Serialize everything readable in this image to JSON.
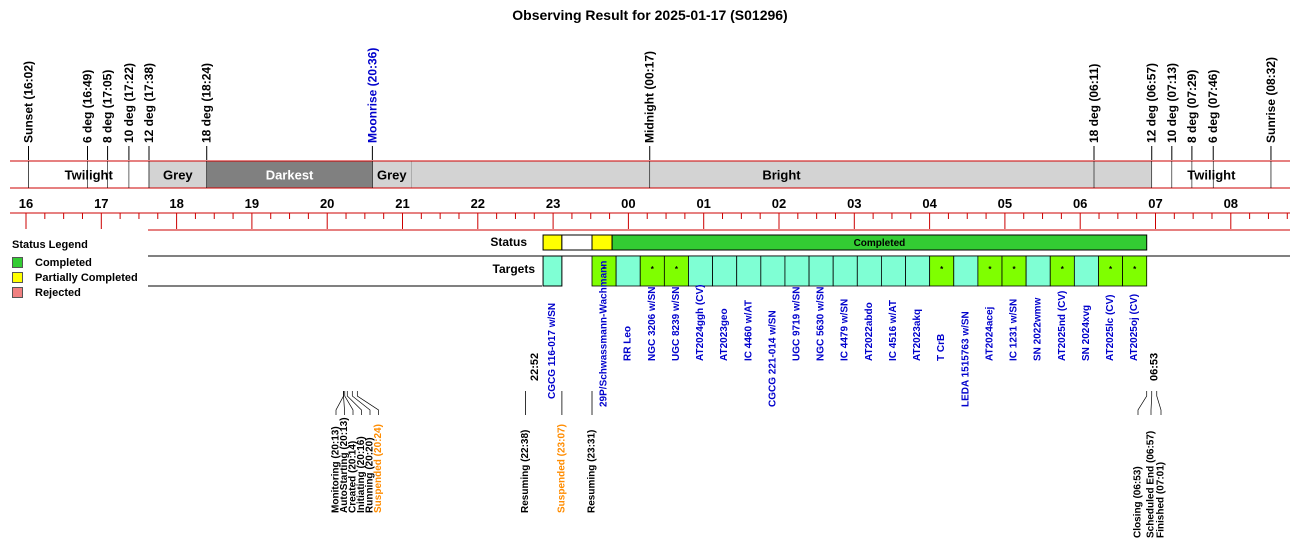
{
  "chart_data": {
    "type": "timeline",
    "title": "Observing Result for 2025-01-17 (S01296)",
    "x_unit": "hour of night (local clock)",
    "xlim": [
      "15:50",
      "08:50"
    ],
    "hour_ticks": [
      "16",
      "17",
      "18",
      "19",
      "20",
      "21",
      "22",
      "23",
      "00",
      "01",
      "02",
      "03",
      "04",
      "05",
      "06",
      "07",
      "08"
    ],
    "events": [
      {
        "label": "Sunset (16:02)",
        "time": "16:02",
        "kind": "sun"
      },
      {
        "label": "6 deg (16:49)",
        "time": "16:49",
        "kind": "twilight"
      },
      {
        "label": "8 deg (17:05)",
        "time": "17:05",
        "kind": "twilight"
      },
      {
        "label": "10 deg (17:22)",
        "time": "17:22",
        "kind": "twilight"
      },
      {
        "label": "12 deg (17:38)",
        "time": "17:38",
        "kind": "twilight"
      },
      {
        "label": "18 deg (18:24)",
        "time": "18:24",
        "kind": "twilight"
      },
      {
        "label": "Moonrise (20:36)",
        "time": "20:36",
        "kind": "moon"
      },
      {
        "label": "Midnight (00:17)",
        "time": "00:17",
        "kind": "midnight"
      },
      {
        "label": "18 deg (06:11)",
        "time": "06:11",
        "kind": "twilight"
      },
      {
        "label": "12 deg (06:57)",
        "time": "06:57",
        "kind": "twilight"
      },
      {
        "label": "10 deg (07:13)",
        "time": "07:13",
        "kind": "twilight"
      },
      {
        "label": "8 deg (07:29)",
        "time": "07:29",
        "kind": "twilight"
      },
      {
        "label": "6 deg (07:46)",
        "time": "07:46",
        "kind": "twilight"
      },
      {
        "label": "Sunrise (08:32)",
        "time": "08:32",
        "kind": "sun"
      }
    ],
    "sky_segments": [
      {
        "label": "Twilight",
        "start": "16:02",
        "end": "17:38",
        "shade": "white"
      },
      {
        "label": "Grey",
        "start": "17:38",
        "end": "18:24",
        "shade": "lightgrey"
      },
      {
        "label": "Darkest",
        "start": "18:24",
        "end": "20:36",
        "shade": "darkgrey"
      },
      {
        "label": "Grey",
        "start": "20:36",
        "end": "21:07",
        "shade": "lightgrey"
      },
      {
        "label": "Bright",
        "start": "21:07",
        "end": "06:57",
        "shade": "lightgrey"
      },
      {
        "label": "Twilight",
        "start": "06:57",
        "end": "08:32",
        "shade": "white"
      }
    ],
    "status_row_label": "Status",
    "targets_row_label": "Targets",
    "status_blocks": [
      {
        "start": "22:52",
        "end": "23:07",
        "status": "Partially Completed",
        "label": ""
      },
      {
        "start": "23:07",
        "end": "23:31",
        "status": "none",
        "label": ""
      },
      {
        "start": "23:31",
        "end": "23:47",
        "status": "Partially Completed",
        "label": ""
      },
      {
        "start": "23:47",
        "end": "06:53",
        "status": "Completed",
        "label": "Completed"
      }
    ],
    "start_time_label": "22:52",
    "end_time_label": "06:53",
    "targets": [
      {
        "name": "CGCG 116-017 w/SN",
        "mark": ""
      },
      {
        "name": "29P/Schwassmann-Wachmann",
        "mark": "*"
      },
      {
        "name": "RR Leo",
        "mark": ""
      },
      {
        "name": "NGC 3206 w/SN",
        "mark": "*"
      },
      {
        "name": "UGC 8239 w/SN",
        "mark": "*"
      },
      {
        "name": "AT2024ggh (CV)",
        "mark": ""
      },
      {
        "name": "AT2023geo",
        "mark": ""
      },
      {
        "name": "IC 4460 w/AT",
        "mark": ""
      },
      {
        "name": "CGCG 221-014 w/SN",
        "mark": ""
      },
      {
        "name": "UGC 9719 w/SN",
        "mark": ""
      },
      {
        "name": "NGC 5630 w/SN",
        "mark": ""
      },
      {
        "name": "IC 4479 w/SN",
        "mark": ""
      },
      {
        "name": "AT2022abdo",
        "mark": ""
      },
      {
        "name": "IC 4516 w/AT",
        "mark": ""
      },
      {
        "name": "AT2023akq",
        "mark": ""
      },
      {
        "name": "T CrB",
        "mark": "*"
      },
      {
        "name": "LEDA 1515763 w/SN",
        "mark": ""
      },
      {
        "name": "AT2024acej",
        "mark": "*"
      },
      {
        "name": "IC 1231 w/SN",
        "mark": "*"
      },
      {
        "name": "SN 2022wmw",
        "mark": ""
      },
      {
        "name": "AT2025nd (CV)",
        "mark": "*"
      },
      {
        "name": "SN 2024xvg",
        "mark": ""
      },
      {
        "name": "AT2025lc (CV)",
        "mark": "*"
      },
      {
        "name": "AT2025oj (CV)",
        "mark": "*"
      }
    ],
    "log_events": [
      {
        "label": "Monitoring (20:13)",
        "time": "20:13",
        "kind": "normal"
      },
      {
        "label": "AutoStarting (20:13)",
        "time": "20:13",
        "kind": "normal"
      },
      {
        "label": "Created (20:14)",
        "time": "20:14",
        "kind": "normal"
      },
      {
        "label": "Initiating (20:16)",
        "time": "20:16",
        "kind": "normal"
      },
      {
        "label": "Running (20:20)",
        "time": "20:20",
        "kind": "normal"
      },
      {
        "label": "Suspended (20:24)",
        "time": "20:24",
        "kind": "suspended"
      },
      {
        "label": "Resuming (22:38)",
        "time": "22:38",
        "kind": "normal"
      },
      {
        "label": "Suspended (23:07)",
        "time": "23:07",
        "kind": "suspended"
      },
      {
        "label": "Resuming (23:31)",
        "time": "23:31",
        "kind": "normal"
      },
      {
        "label": "Closing (06:53)",
        "time": "06:53",
        "kind": "normal"
      },
      {
        "label": "Scheduled End (06:57)",
        "time": "06:57",
        "kind": "normal"
      },
      {
        "label": "Finished (07:01)",
        "time": "07:01",
        "kind": "normal"
      }
    ],
    "legend": {
      "title": "Status Legend",
      "placement": "left",
      "items": [
        {
          "label": "Completed",
          "color": "#33cc33"
        },
        {
          "label": "Partially Completed",
          "color": "#ffff00"
        },
        {
          "label": "Rejected",
          "color": "#f08080"
        }
      ]
    },
    "colors": {
      "completed": "#33cc33",
      "partial": "#ffff00",
      "target_fill": "#7fffd4",
      "target_marked_fill": "#7fff00",
      "target_text": "#0000cc",
      "moon": "#0000cc",
      "suspended": "#ff8c00",
      "axis": "#cc0000",
      "darkest": "#808080",
      "grey": "#d3d3d3"
    }
  }
}
